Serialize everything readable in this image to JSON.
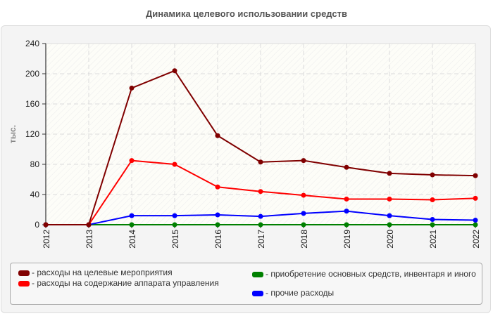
{
  "title": "Динамика целевого использовании средств",
  "chart_data": {
    "type": "line",
    "title": "Динамика целевого использовании средств",
    "xlabel": "",
    "ylabel": "тыс.",
    "ylim": [
      0,
      240
    ],
    "yticks": [
      0,
      40,
      80,
      120,
      160,
      200,
      240
    ],
    "grid": true,
    "legend_position": "bottom",
    "categories": [
      "2012",
      "2013",
      "2014",
      "2015",
      "2016",
      "2017",
      "2018",
      "2019",
      "2020",
      "2021",
      "2022"
    ],
    "series": [
      {
        "name": "расходы на целевые мероприятия",
        "color": "#800000",
        "values": [
          0,
          0,
          181,
          204,
          118,
          83,
          85,
          76,
          68,
          66,
          65
        ]
      },
      {
        "name": "расходы на содержание аппарата управления",
        "color": "#ff0000",
        "values": [
          0,
          0,
          85,
          80,
          50,
          44,
          39,
          34,
          34,
          33,
          35
        ]
      },
      {
        "name": "приобретение основных средств, инвентаря и иного",
        "color": "#008000",
        "values": [
          0,
          0,
          0,
          0,
          0,
          0,
          0,
          0,
          0,
          0,
          0
        ]
      },
      {
        "name": "прочие расходы",
        "color": "#0000ff",
        "values": [
          0,
          0,
          12,
          12,
          13,
          11,
          15,
          18,
          12,
          7,
          6
        ]
      }
    ]
  },
  "legend": [
    {
      "label": "- расходы на целевые мероприятия",
      "color": "#800000"
    },
    {
      "label": "- расходы на содержание аппарата управления",
      "color": "#ff0000"
    },
    {
      "label": "- приобретение основных средств, инвентаря и иного",
      "color": "#008000"
    },
    {
      "label": "- прочие расходы",
      "color": "#0000ff"
    }
  ]
}
